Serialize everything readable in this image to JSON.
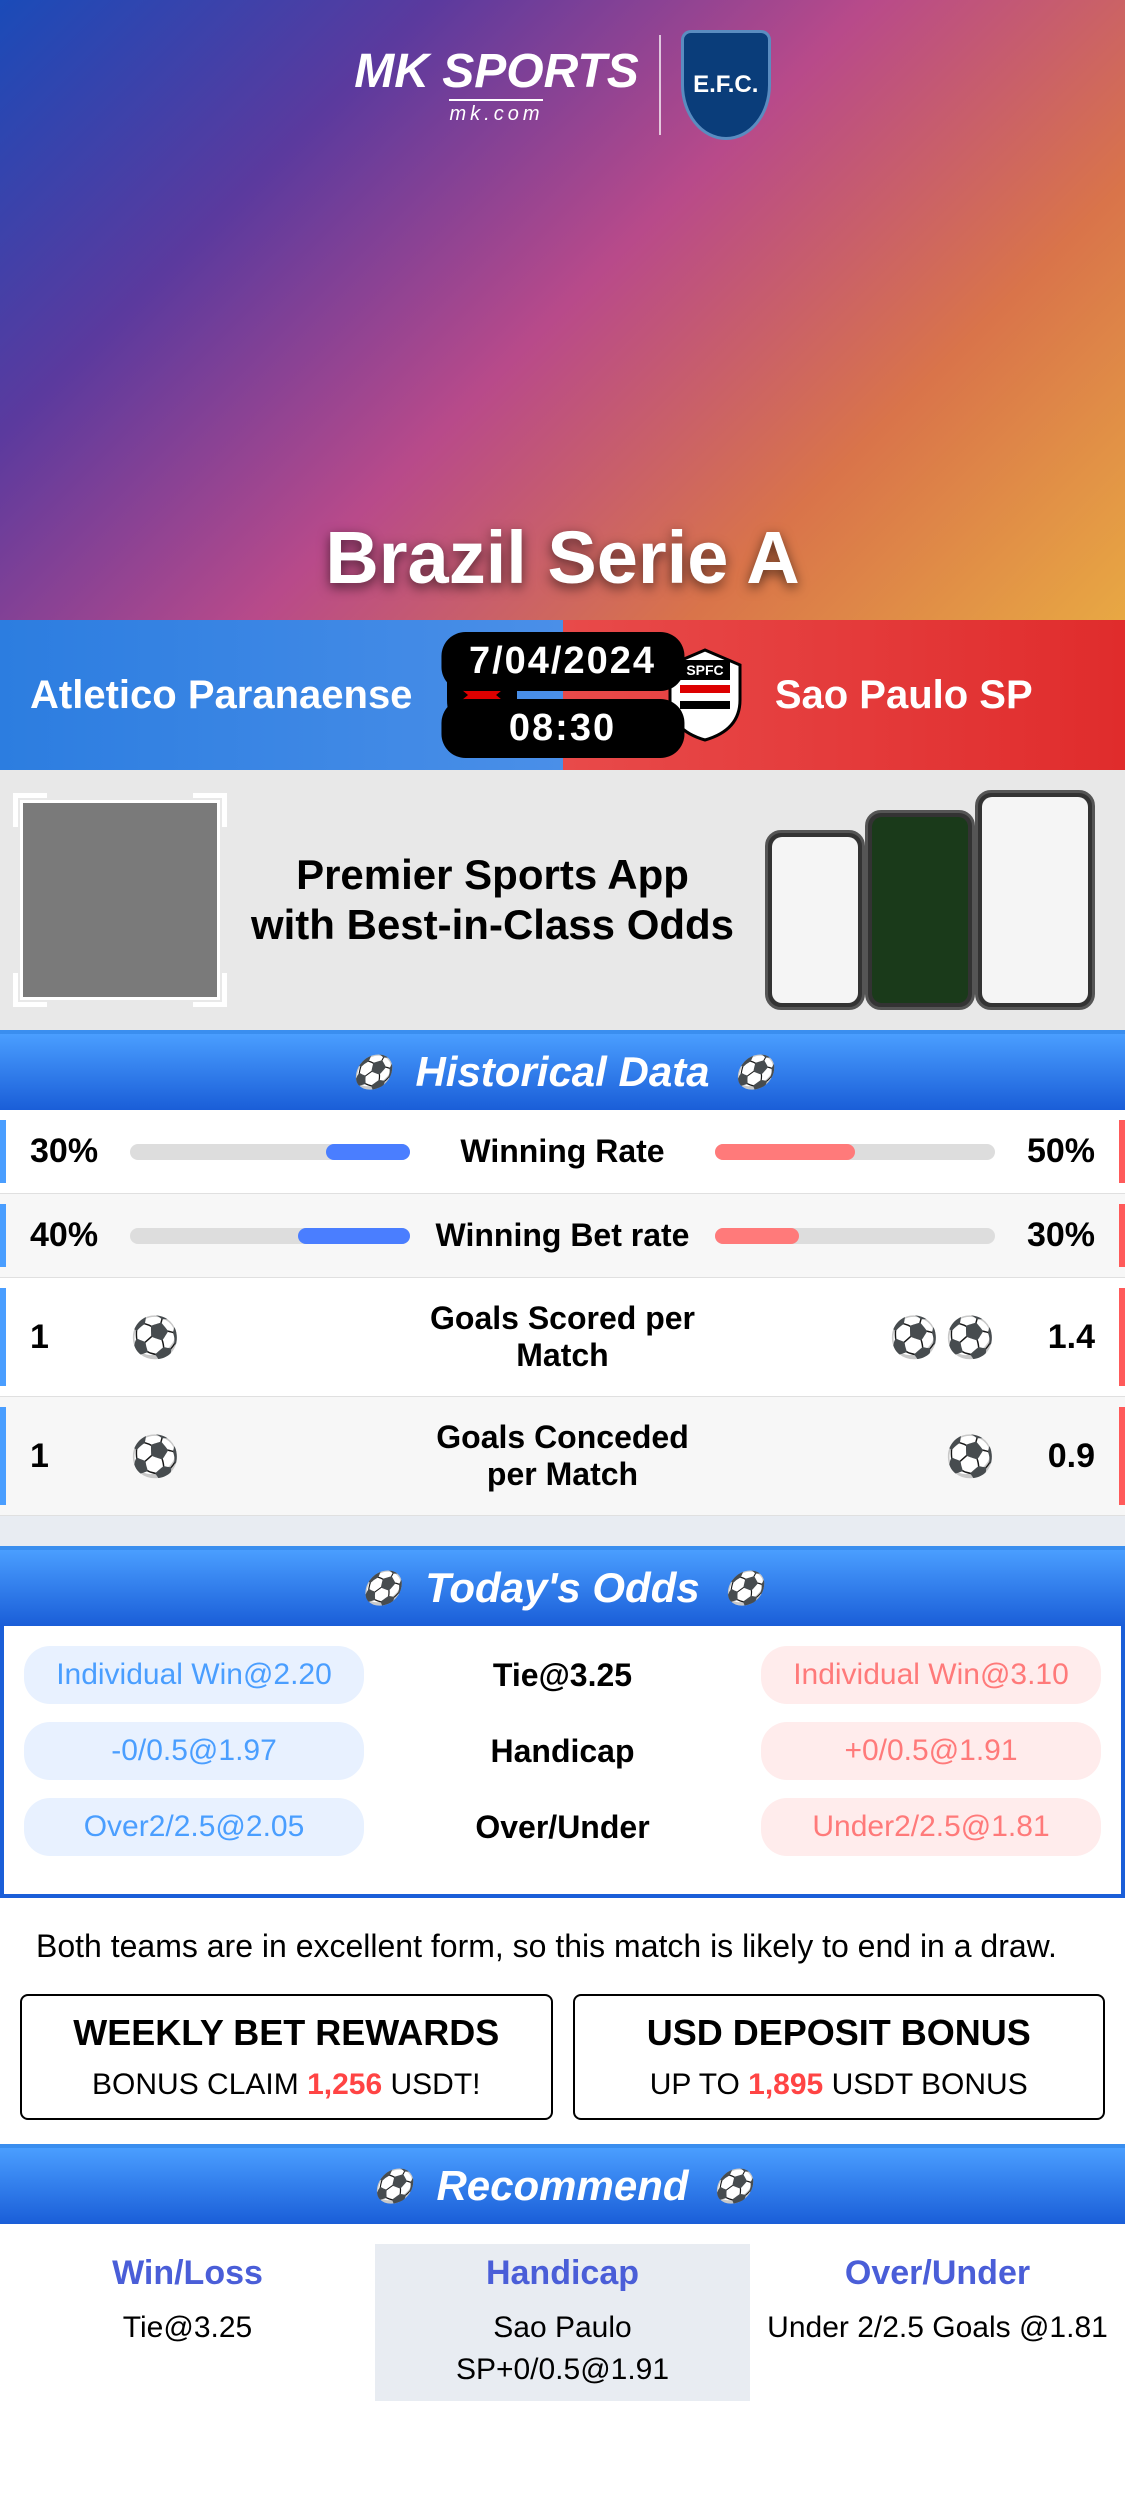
{
  "logo": {
    "brand": "MK SPORTS",
    "sub": "mk.com",
    "badge": "E.F.C."
  },
  "hero": {
    "league": "Brazil Serie A"
  },
  "match": {
    "team1": "Atletico Paranaense",
    "team2": "Sao Paulo SP",
    "date": "7/04/2024",
    "time": "08:30",
    "colors": {
      "team1": "#2c7de0",
      "team2": "#e02c2c"
    }
  },
  "promo": {
    "line1": "Premier Sports App",
    "line2": "with Best-in-Class Odds"
  },
  "historical": {
    "header": "Historical Data",
    "rows": [
      {
        "label": "Winning Rate",
        "left_val": "30%",
        "right_val": "50%",
        "left_pct": 30,
        "right_pct": 50,
        "type": "bar"
      },
      {
        "label": "Winning Bet rate",
        "left_val": "40%",
        "right_val": "30%",
        "left_pct": 40,
        "right_pct": 30,
        "type": "bar"
      },
      {
        "label": "Goals Scored per Match",
        "left_val": "1",
        "right_val": "1.4",
        "left_count": 1,
        "right_count": 2,
        "type": "icon"
      },
      {
        "label": "Goals Conceded per Match",
        "left_val": "1",
        "right_val": "0.9",
        "left_count": 1,
        "right_count": 1,
        "type": "icon"
      }
    ]
  },
  "odds": {
    "header": "Today's Odds",
    "rows": [
      {
        "left": "Individual Win@2.20",
        "center": "Tie@3.25",
        "right": "Individual Win@3.10"
      },
      {
        "left": "-0/0.5@1.97",
        "center": "Handicap",
        "right": "+0/0.5@1.91"
      },
      {
        "left": "Over2/2.5@2.05",
        "center": "Over/Under",
        "right": "Under2/2.5@1.81"
      }
    ]
  },
  "analysis": "Both teams are in excellent form, so this match is likely to end in a draw.",
  "bonus": [
    {
      "title": "WEEKLY BET REWARDS",
      "pre": "BONUS CLAIM ",
      "hl": "1,256",
      "post": " USDT!"
    },
    {
      "title": "USD DEPOSIT BONUS",
      "pre": "UP TO ",
      "hl": "1,895",
      "post": " USDT BONUS"
    }
  ],
  "recommend": {
    "header": "Recommend",
    "cols": [
      {
        "title": "Win/Loss",
        "text": "Tie@3.25"
      },
      {
        "title": "Handicap",
        "text": "Sao Paulo SP+0/0.5@1.91"
      },
      {
        "title": "Over/Under",
        "text": "Under 2/2.5 Goals @1.81"
      }
    ]
  },
  "colors": {
    "blue": "#4a9eff",
    "red": "#ff7a7a",
    "header_grad_top": "#4a9eff",
    "header_grad_bot": "#1a5ed8"
  }
}
